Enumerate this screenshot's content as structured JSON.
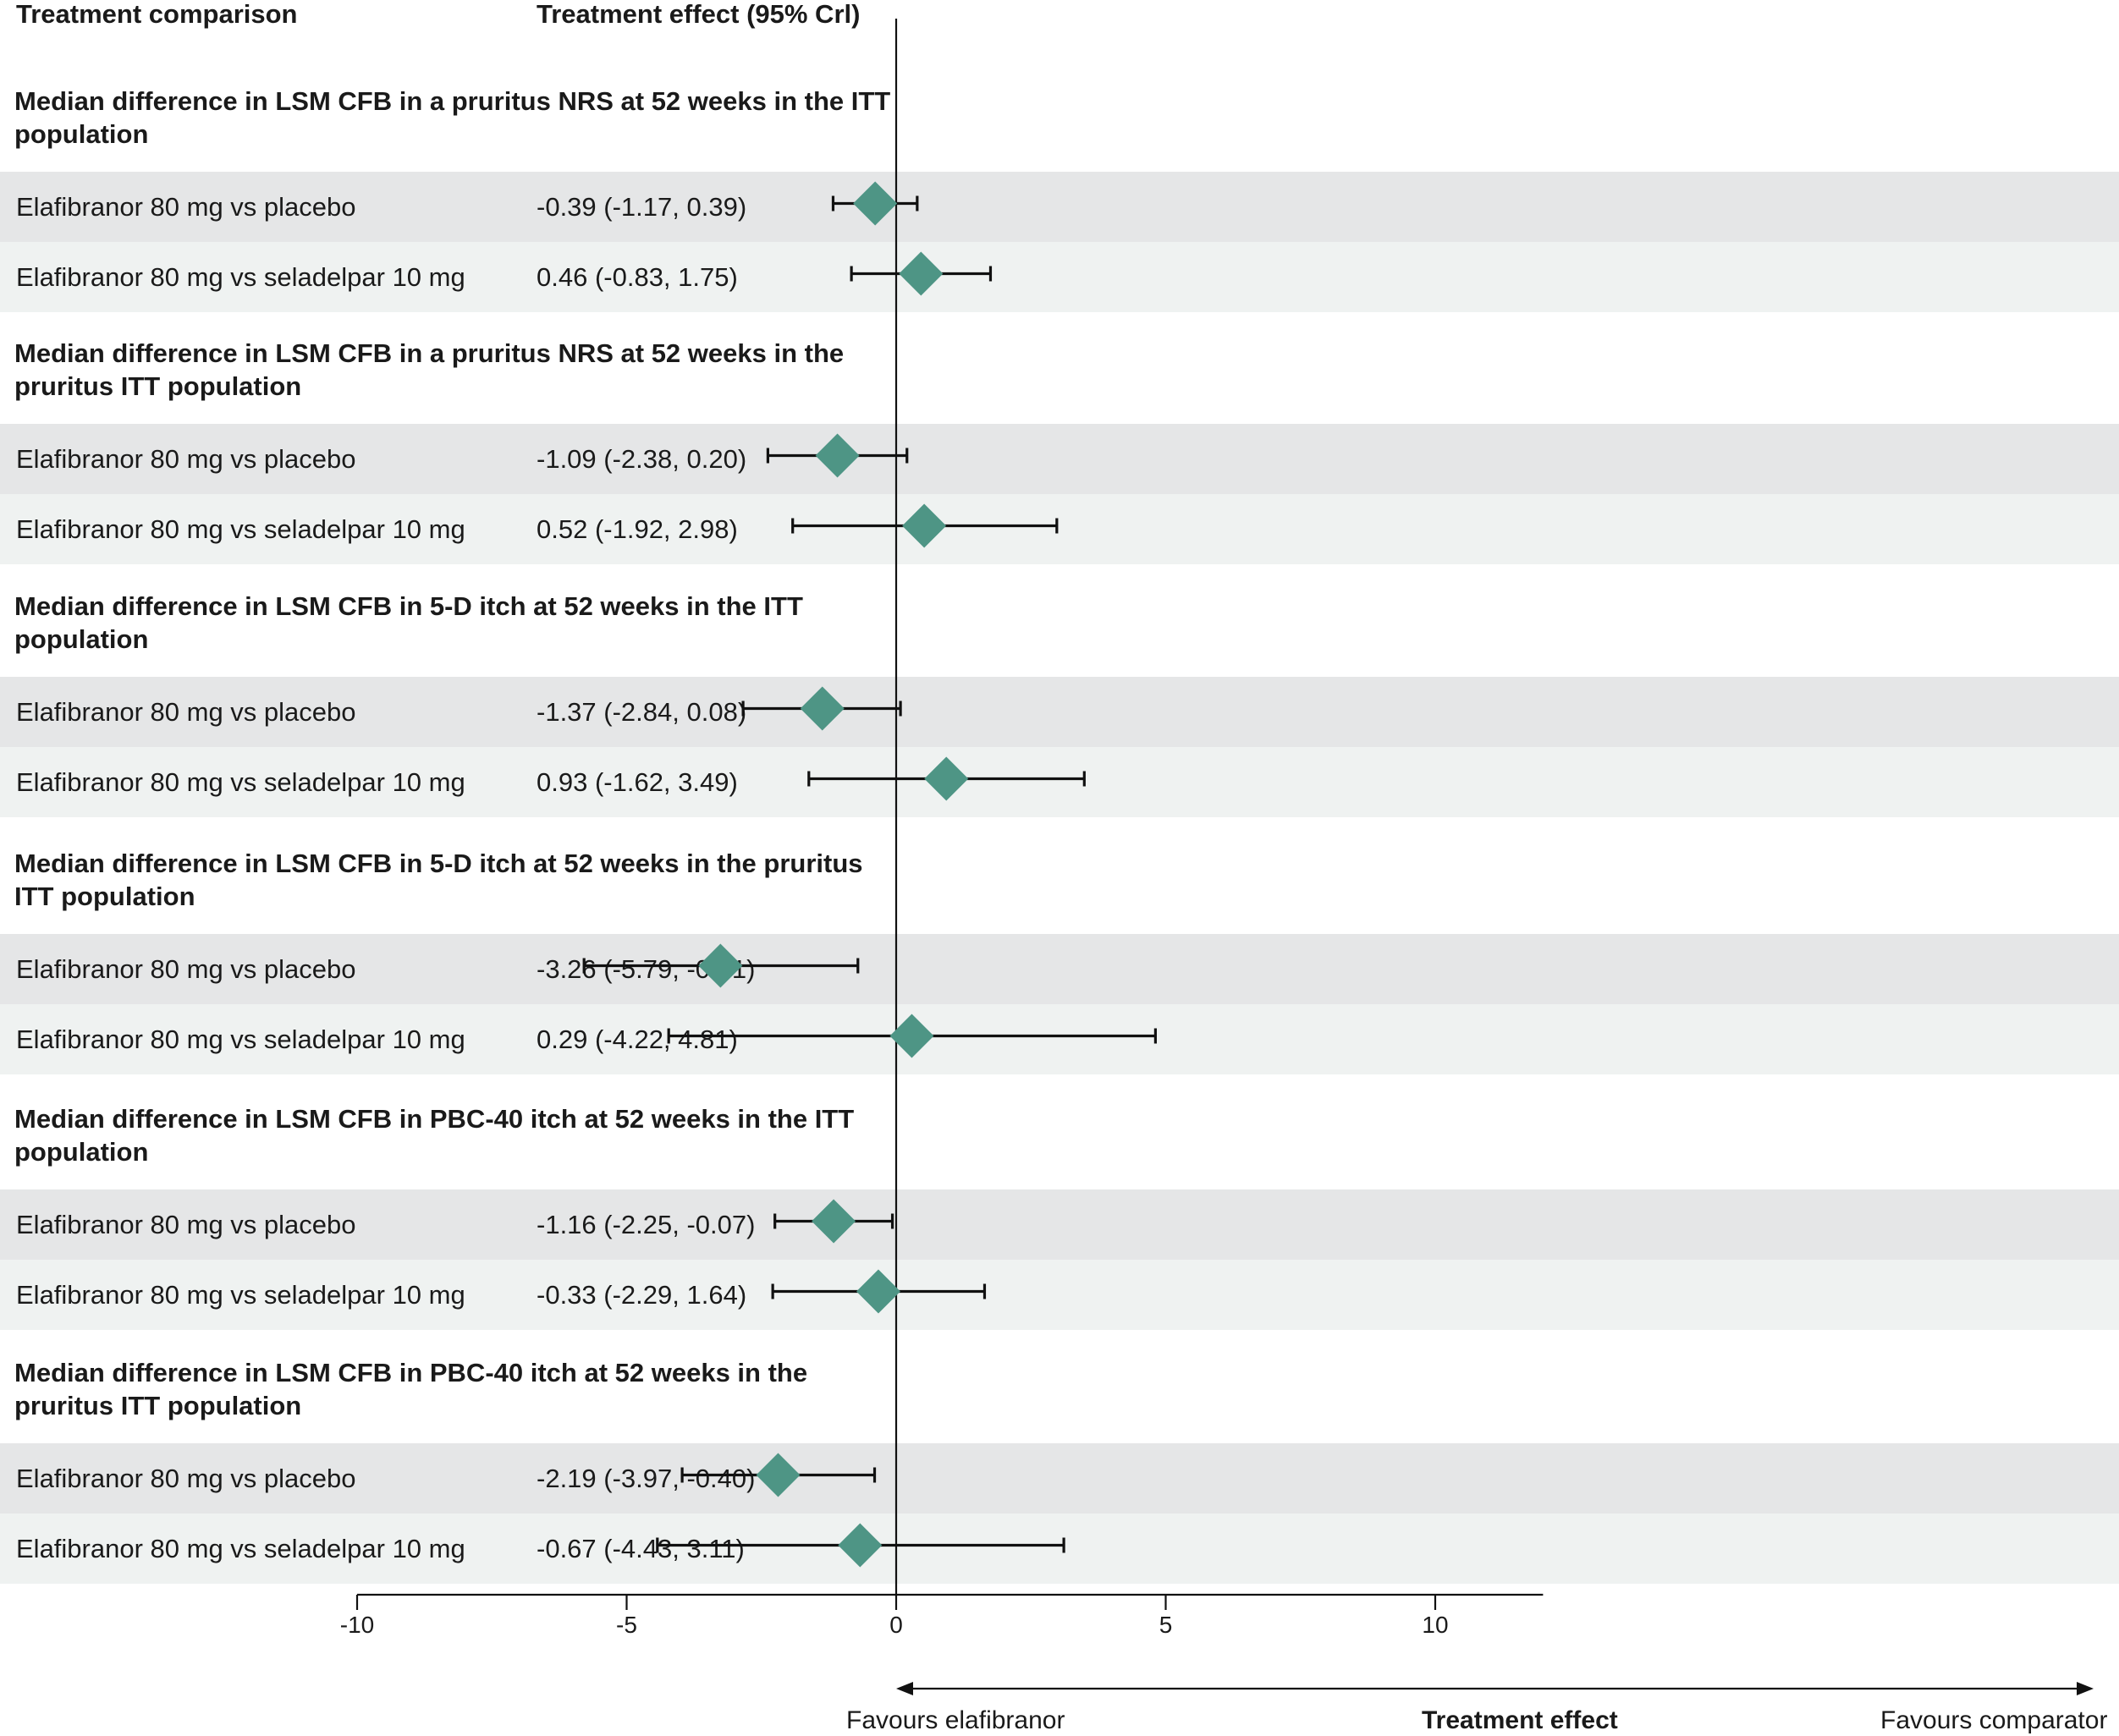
{
  "headers": {
    "comparison": "Treatment comparison",
    "effect": "Treatment effect (95% Crl)"
  },
  "chart_data": {
    "type": "forest",
    "xlim": [
      -10,
      12
    ],
    "xticks": [
      "-10",
      "-5",
      "0",
      "5",
      "10"
    ],
    "xtick_values": [
      -10,
      -5,
      0,
      5,
      10
    ],
    "reference_line": 0,
    "xlabel": "Treatment effect",
    "direction_left": "Favours elafibranor",
    "direction_right": "Favours comparator",
    "marker_color": "#4e9585",
    "sections": [
      {
        "title": "Median difference in LSM CFB in a pruritus NRS at 52 weeks in the ITT population",
        "rows": [
          {
            "label": "Elafibranor 80 mg vs placebo",
            "effect": "-0.39 (-1.17, 0.39)",
            "est": -0.39,
            "lo": -1.17,
            "hi": 0.39
          },
          {
            "label": "Elafibranor 80 mg vs seladelpar 10 mg",
            "effect": "0.46 (-0.83, 1.75)",
            "est": 0.46,
            "lo": -0.83,
            "hi": 1.75
          }
        ]
      },
      {
        "title": "Median difference in LSM CFB in a pruritus NRS at 52 weeks in the pruritus ITT population",
        "rows": [
          {
            "label": "Elafibranor 80 mg vs placebo",
            "effect": "-1.09 (-2.38, 0.20)",
            "est": -1.09,
            "lo": -2.38,
            "hi": 0.2
          },
          {
            "label": "Elafibranor 80 mg vs seladelpar 10 mg",
            "effect": "0.52 (-1.92, 2.98)",
            "est": 0.52,
            "lo": -1.92,
            "hi": 2.98
          }
        ]
      },
      {
        "title": "Median difference in LSM CFB in 5-D itch at 52 weeks in the ITT population",
        "rows": [
          {
            "label": "Elafibranor 80 mg vs placebo",
            "effect": "-1.37 (-2.84, 0.08)",
            "est": -1.37,
            "lo": -2.84,
            "hi": 0.08
          },
          {
            "label": "Elafibranor 80 mg vs seladelpar 10 mg",
            "effect": "0.93 (-1.62, 3.49)",
            "est": 0.93,
            "lo": -1.62,
            "hi": 3.49
          }
        ]
      },
      {
        "title": "Median difference in LSM CFB in 5-D itch at 52 weeks in the pruritus ITT population",
        "rows": [
          {
            "label": "Elafibranor 80 mg vs placebo",
            "effect": "-3.26 (-5.79, -0.71)",
            "est": -3.26,
            "lo": -5.79,
            "hi": -0.71
          },
          {
            "label": "Elafibranor 80 mg vs seladelpar 10 mg",
            "effect": "0.29 (-4.22, 4.81)",
            "est": 0.29,
            "lo": -4.22,
            "hi": 4.81
          }
        ]
      },
      {
        "title": "Median difference in LSM CFB in PBC-40 itch at 52 weeks in the ITT population",
        "rows": [
          {
            "label": "Elafibranor 80 mg vs placebo",
            "effect": "-1.16 (-2.25, -0.07)",
            "est": -1.16,
            "lo": -2.25,
            "hi": -0.07
          },
          {
            "label": "Elafibranor 80 mg vs seladelpar 10 mg",
            "effect": "-0.33 (-2.29, 1.64)",
            "est": -0.33,
            "lo": -2.29,
            "hi": 1.64
          }
        ]
      },
      {
        "title": "Median difference in LSM CFB in PBC-40 itch at 52 weeks in the pruritus ITT population",
        "rows": [
          {
            "label": "Elafibranor 80 mg vs placebo",
            "effect": "-2.19 (-3.97, -0.40)",
            "est": -2.19,
            "lo": -3.97,
            "hi": -0.4
          },
          {
            "label": "Elafibranor 80 mg vs seladelpar 10 mg",
            "effect": "-0.67 (-4.43, 3.11)",
            "est": -0.67,
            "lo": -4.43,
            "hi": 3.11
          }
        ]
      }
    ]
  }
}
